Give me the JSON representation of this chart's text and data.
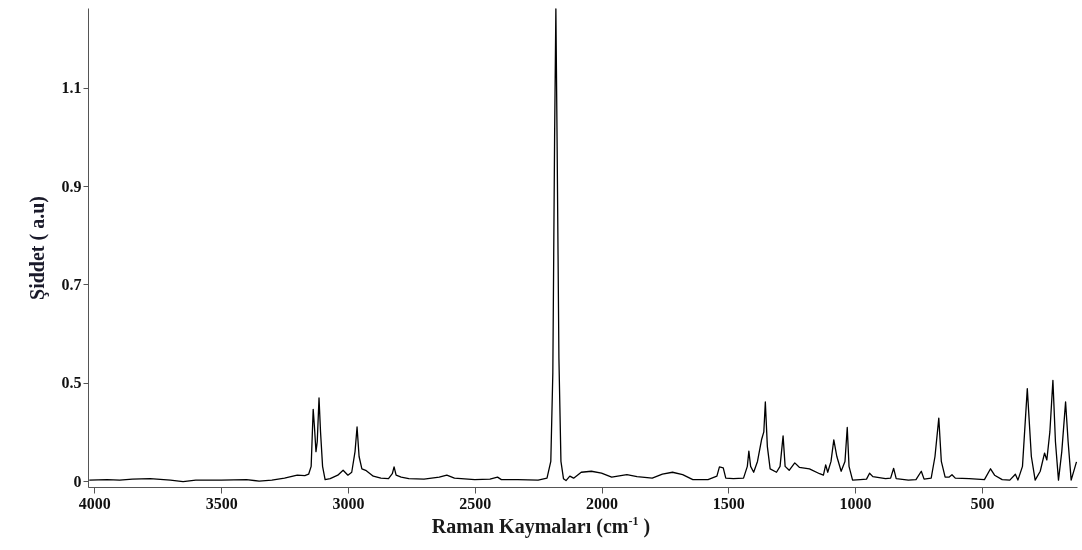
{
  "chart_data": {
    "type": "line",
    "xlabel": "Raman Kaymaları (cm$^{-1}$  )",
    "ylabel": "Şiddet ( a.u)",
    "xlim": [
      4025,
      125
    ],
    "ylim": [
      0.288,
      1.262
    ],
    "xticks": [
      4000,
      3500,
      3000,
      2500,
      2000,
      1500,
      1000,
      500
    ],
    "yticks": [
      {
        "value": 0.3,
        "label": "0"
      },
      0.5,
      0.7,
      0.9,
      1.1
    ],
    "grid": false,
    "marker": "none",
    "line_style": "solid",
    "series": [
      {
        "color": "#000000",
        "x": [
          4020,
          3950,
          3900,
          3850,
          3780,
          3700,
          3650,
          3600,
          3500,
          3400,
          3350,
          3300,
          3250,
          3200,
          3170,
          3155,
          3145,
          3137,
          3132,
          3126,
          3121,
          3114,
          3108,
          3100,
          3090,
          3070,
          3040,
          3019,
          3000,
          2985,
          2972,
          2964,
          2956,
          2945,
          2930,
          2900,
          2870,
          2840,
          2825,
          2818,
          2810,
          2790,
          2760,
          2700,
          2640,
          2610,
          2580,
          2500,
          2440,
          2410,
          2395,
          2330,
          2250,
          2215,
          2200,
          2192,
          2185,
          2180,
          2175,
          2168,
          2160,
          2150,
          2140,
          2125,
          2110,
          2080,
          2040,
          2000,
          1960,
          1900,
          1860,
          1800,
          1760,
          1720,
          1680,
          1640,
          1580,
          1545,
          1535,
          1520,
          1510,
          1480,
          1440,
          1425,
          1419,
          1412,
          1400,
          1385,
          1369,
          1360,
          1354,
          1346,
          1335,
          1310,
          1296,
          1284,
          1276,
          1260,
          1238,
          1220,
          1180,
          1140,
          1125,
          1116,
          1108,
          1095,
          1084,
          1072,
          1055,
          1040,
          1031,
          1024,
          1010,
          980,
          955,
          943,
          930,
          880,
          860,
          848,
          838,
          790,
          760,
          739,
          728,
          700,
          685,
          670,
          660,
          645,
          630,
          618,
          605,
          550,
          490,
          466,
          450,
          420,
          390,
          368,
          358,
          340,
          321,
          305,
          290,
          270,
          253,
          244,
          232,
          220,
          210,
          198,
          185,
          170,
          160,
          148,
          127
        ],
        "values": [
          0.302,
          0.303,
          0.302,
          0.304,
          0.305,
          0.302,
          0.299,
          0.302,
          0.302,
          0.303,
          0.3,
          0.302,
          0.306,
          0.312,
          0.311,
          0.314,
          0.33,
          0.446,
          0.41,
          0.36,
          0.38,
          0.469,
          0.4,
          0.33,
          0.303,
          0.305,
          0.312,
          0.322,
          0.312,
          0.318,
          0.36,
          0.41,
          0.35,
          0.325,
          0.322,
          0.31,
          0.306,
          0.305,
          0.315,
          0.329,
          0.312,
          0.308,
          0.305,
          0.304,
          0.308,
          0.312,
          0.306,
          0.303,
          0.304,
          0.308,
          0.303,
          0.303,
          0.302,
          0.306,
          0.34,
          0.52,
          1.0,
          1.26,
          0.98,
          0.55,
          0.34,
          0.305,
          0.301,
          0.31,
          0.306,
          0.318,
          0.32,
          0.316,
          0.308,
          0.313,
          0.309,
          0.306,
          0.314,
          0.318,
          0.313,
          0.303,
          0.303,
          0.31,
          0.329,
          0.327,
          0.306,
          0.305,
          0.306,
          0.33,
          0.361,
          0.33,
          0.318,
          0.34,
          0.384,
          0.4,
          0.461,
          0.37,
          0.325,
          0.318,
          0.33,
          0.392,
          0.33,
          0.322,
          0.337,
          0.328,
          0.325,
          0.315,
          0.312,
          0.333,
          0.318,
          0.34,
          0.384,
          0.35,
          0.32,
          0.34,
          0.409,
          0.33,
          0.302,
          0.303,
          0.304,
          0.316,
          0.309,
          0.305,
          0.306,
          0.326,
          0.305,
          0.302,
          0.303,
          0.32,
          0.304,
          0.306,
          0.35,
          0.428,
          0.34,
          0.308,
          0.308,
          0.313,
          0.306,
          0.305,
          0.303,
          0.325,
          0.312,
          0.303,
          0.302,
          0.314,
          0.302,
          0.33,
          0.488,
          0.35,
          0.302,
          0.32,
          0.357,
          0.343,
          0.4,
          0.505,
          0.38,
          0.302,
          0.36,
          0.461,
          0.38,
          0.302,
          0.339
        ]
      }
    ]
  }
}
